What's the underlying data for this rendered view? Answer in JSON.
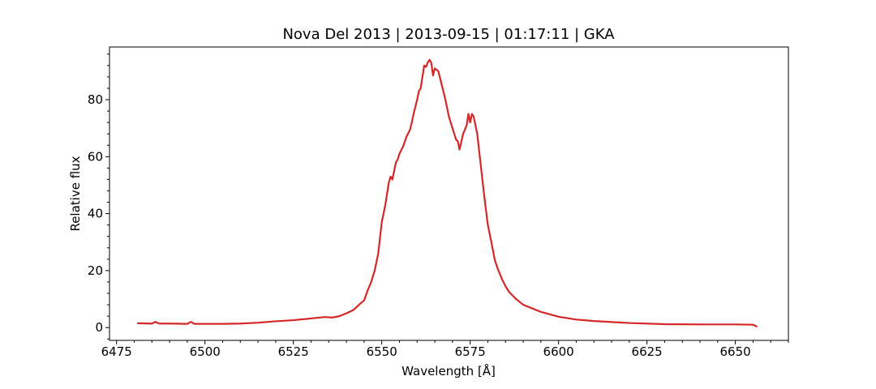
{
  "chart_data": {
    "type": "line",
    "title": "Nova Del 2013 | 2013-09-15 | 01:17:11 | GKA",
    "xlabel": "Wavelength [Å]",
    "ylabel": "Relative flux",
    "xlim": [
      6473,
      6665
    ],
    "ylim": [
      -4.5,
      98.5
    ],
    "xticks": [
      6475,
      6500,
      6525,
      6550,
      6575,
      6600,
      6625,
      6650
    ],
    "yticks": [
      0,
      20,
      40,
      60,
      80
    ],
    "xtick_labels": [
      "6475",
      "6500",
      "6525",
      "6550",
      "6575",
      "6600",
      "6625",
      "6650"
    ],
    "ytick_labels": [
      "0",
      "20",
      "40",
      "60",
      "80"
    ],
    "grid": false,
    "series": [
      {
        "color": "#d62728",
        "x": [
          6481,
          6485,
          6486,
          6487,
          6490,
          6495,
          6496,
          6497,
          6500,
          6505,
          6510,
          6515,
          6520,
          6525,
          6530,
          6534,
          6536,
          6538,
          6540,
          6542,
          6544,
          6545,
          6546,
          6547,
          6548,
          6549,
          6550,
          6551,
          6552,
          6552.5,
          6553,
          6554,
          6554.5,
          6555,
          6556,
          6557,
          6558,
          6558.5,
          6559,
          6560,
          6560.5,
          6561,
          6562,
          6562.5,
          6563,
          6563.5,
          6564,
          6564.5,
          6565,
          6566,
          6567,
          6568,
          6569,
          6570,
          6571,
          6571.5,
          6572,
          6573,
          6574,
          6574.5,
          6575,
          6575.5,
          6576,
          6577,
          6578,
          6579,
          6580,
          6581,
          6582,
          6583,
          6584,
          6585,
          6586,
          6588,
          6590,
          6595,
          6600,
          6605,
          6610,
          6620,
          6630,
          6640,
          6650,
          6655,
          6656
        ],
        "y": [
          1.5,
          1.4,
          2.0,
          1.4,
          1.4,
          1.3,
          2.0,
          1.3,
          1.3,
          1.3,
          1.4,
          1.7,
          2.2,
          2.6,
          3.2,
          3.7,
          3.5,
          4.0,
          5.0,
          6.2,
          8.5,
          9.5,
          13.0,
          16.0,
          20.0,
          26.0,
          37.0,
          43.0,
          51.0,
          53.0,
          52.0,
          58.0,
          59.0,
          61.0,
          63.5,
          67.0,
          69.5,
          72.0,
          75.0,
          80.0,
          83.0,
          84.0,
          92.0,
          91.5,
          93.0,
          94.0,
          93.0,
          88.5,
          91.0,
          90.0,
          85.0,
          80.0,
          74.0,
          70.0,
          66.0,
          65.5,
          62.5,
          68.0,
          71.0,
          75.0,
          72.0,
          75.0,
          74.0,
          68.0,
          57.0,
          46.0,
          36.0,
          30.0,
          23.5,
          20.0,
          17.0,
          14.5,
          12.5,
          10.0,
          8.0,
          5.5,
          3.8,
          2.8,
          2.3,
          1.6,
          1.2,
          1.1,
          1.1,
          1.0,
          0.4
        ]
      }
    ]
  }
}
